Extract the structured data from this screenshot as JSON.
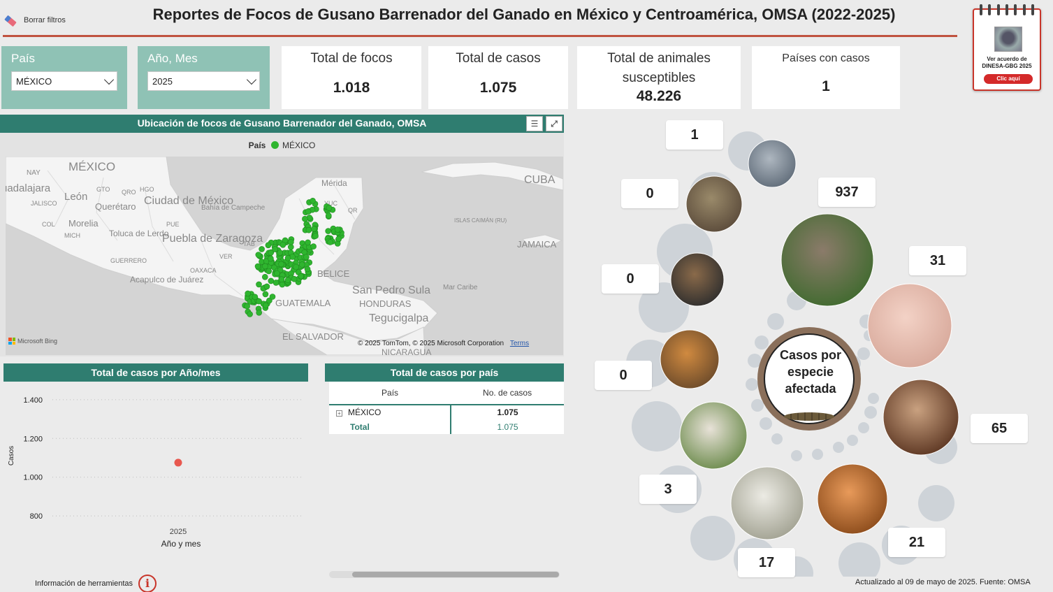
{
  "header": {
    "clear_filters": "Borrar filtros",
    "title": "Reportes de Focos de Gusano Barrenador del Ganado en México y Centroamérica, OMSA (2022-2025)"
  },
  "calendar": {
    "text_line1": "Ver acuerdo de",
    "text_line2": "DINESA-GBG 2025",
    "button": "Clic aquí"
  },
  "filters": {
    "country": {
      "label": "País",
      "value": "MÉXICO"
    },
    "year_month": {
      "label": "Año, Mes",
      "value": "2025"
    }
  },
  "kpis": [
    {
      "label": "Total de focos",
      "value": "1.018"
    },
    {
      "label": "Total de casos",
      "value": "1.075"
    },
    {
      "label": "Total de animales susceptibles",
      "value": "48.226"
    },
    {
      "label": "Países con casos",
      "value": "1"
    }
  ],
  "map": {
    "title": "Ubicación de focos de Gusano Barrenador del Ganado, OMSA",
    "legend_title": "País",
    "legend_item": "MÉXICO",
    "point_color": "#2fb52f",
    "place_labels": [
      "MÉXICO",
      "NAY",
      "uadalajara",
      "León",
      "GTO",
      "QRO",
      "HGO",
      "JALISCO",
      "Querétaro",
      "Ciudad de México",
      "COL",
      "Morelia",
      "PUE",
      "MICH",
      "Toluca de Lerdo",
      "Puebla de Zaragoza",
      "GUERRERO",
      "Acapulco de Juárez",
      "OAXACA",
      "VER",
      "TAB",
      "Bahía de Campeche",
      "Mérida",
      "YUC",
      "QR",
      "CUBA",
      "ISLAS CAIMÁN (RU)",
      "JAMAICA",
      "BELICE",
      "San Pedro Sula",
      "HONDURAS",
      "Tegucigalpa",
      "GUATEMALA",
      "Mar Caribe",
      "EL SALVADOR",
      "NICARAGUA"
    ],
    "credits": "© 2025 TomTom, © 2025 Microsoft Corporation",
    "terms": "Terms",
    "provider": "Microsoft Bing"
  },
  "line_chart": {
    "title": "Total de casos por Año/mes",
    "chart_data": {
      "type": "scatter",
      "x": [
        "2025"
      ],
      "values": [
        1075
      ],
      "xlabel": "Año y mes",
      "ylabel": "Casos",
      "ylim": [
        750,
        1450
      ],
      "y_ticks": [
        800,
        1000,
        1200,
        1400
      ],
      "y_tick_labels": [
        "800",
        "1.000",
        "1.200",
        "1.400"
      ],
      "point_color": "#e8584f",
      "grid": true
    }
  },
  "country_table": {
    "title": "Total de casos por país",
    "columns": [
      "País",
      "No. de casos"
    ],
    "rows": [
      {
        "country": "MÉXICO",
        "cases": "1.075"
      }
    ],
    "total": {
      "label": "Total",
      "cases": "1.075"
    }
  },
  "species": {
    "center_label_1": "Casos por",
    "center_label_2": "especie",
    "center_label_3": "afectada",
    "items": [
      {
        "name": "ave",
        "count": "1"
      },
      {
        "name": "bovino-bufalo",
        "count": "0"
      },
      {
        "name": "bovino",
        "count": "937"
      },
      {
        "name": "gallina",
        "count": "0"
      },
      {
        "name": "cerdo",
        "count": "31"
      },
      {
        "name": "gato",
        "count": "0"
      },
      {
        "name": "caballo",
        "count": "65"
      },
      {
        "name": "cabra",
        "count": "3"
      },
      {
        "name": "perro",
        "count": "21"
      },
      {
        "name": "oveja",
        "count": "17"
      }
    ]
  },
  "footer": {
    "tools_info": "Información de herramientas",
    "updated": "Actualizado al 09 de mayo de 2025. Fuente: OMSA"
  }
}
